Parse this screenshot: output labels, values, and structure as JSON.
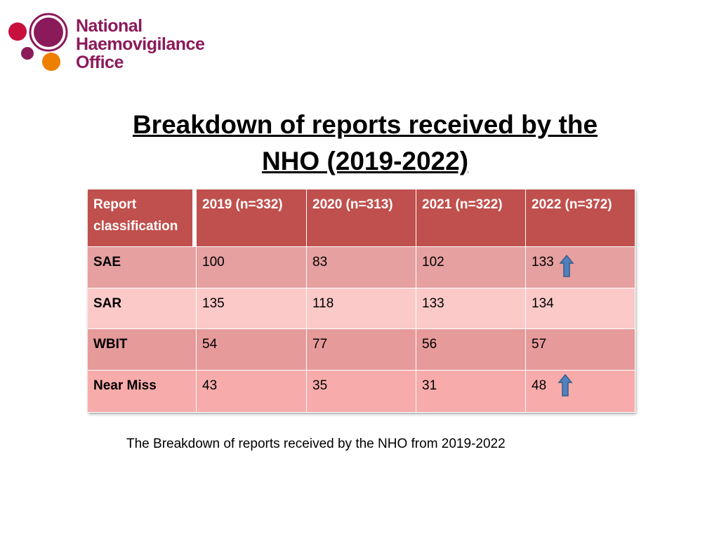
{
  "logo": {
    "lines": [
      "National",
      "Haemovigilance",
      "Office"
    ]
  },
  "title": {
    "lines": [
      "Breakdown of reports received by the",
      "NHO (2019-2022)"
    ]
  },
  "table": {
    "header": [
      "Report classification",
      "2019 (n=332)",
      "2020 (n=313)",
      "2021 (n=322)",
      "2022 (n=372)"
    ],
    "rows": [
      [
        "SAE",
        "100",
        "83",
        "102",
        "133"
      ],
      [
        "SAR",
        "135",
        "118",
        "133",
        "134"
      ],
      [
        "WBIT",
        "54",
        "77",
        "56",
        "57"
      ],
      [
        "Near Miss",
        "43",
        "35",
        "31",
        "48"
      ]
    ]
  },
  "caption": "The Breakdown of reports received by the NHO from 2019-2022"
}
